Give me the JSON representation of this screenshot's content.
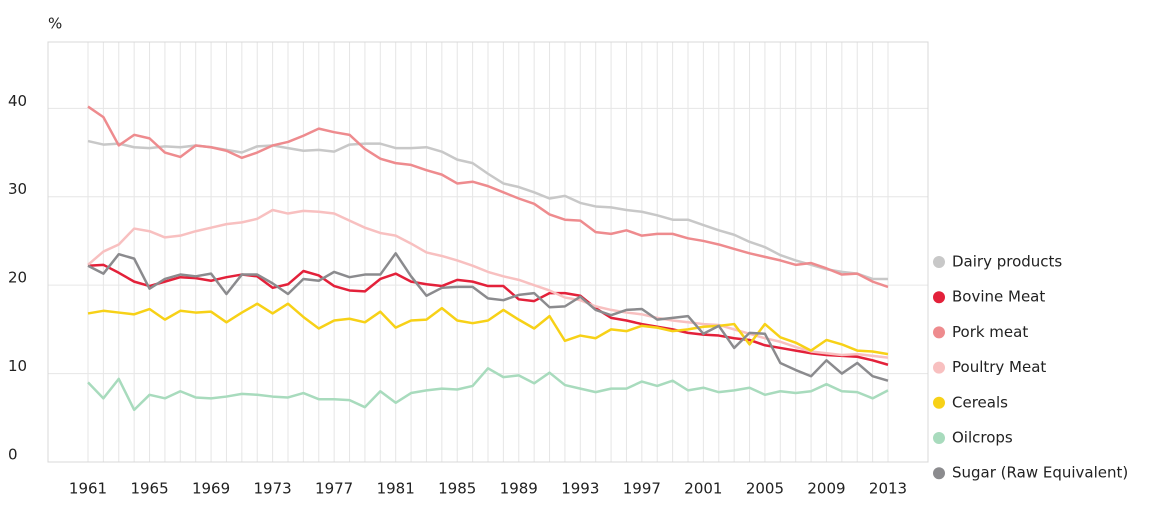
{
  "chart_data": {
    "type": "line",
    "y_label": "%",
    "x": [
      1961,
      1962,
      1963,
      1964,
      1965,
      1966,
      1967,
      1968,
      1969,
      1970,
      1971,
      1972,
      1973,
      1974,
      1975,
      1976,
      1977,
      1978,
      1979,
      1980,
      1981,
      1982,
      1983,
      1984,
      1985,
      1986,
      1987,
      1988,
      1989,
      1990,
      1991,
      1992,
      1993,
      1994,
      1995,
      1996,
      1997,
      1998,
      1999,
      2000,
      2001,
      2002,
      2003,
      2004,
      2005,
      2006,
      2007,
      2008,
      2009,
      2010,
      2011,
      2012,
      2013
    ],
    "xlim": [
      1958.4,
      2015.6
    ],
    "xticks": [
      1961,
      1965,
      1969,
      1973,
      1977,
      1981,
      1985,
      1989,
      1993,
      1997,
      2001,
      2005,
      2009,
      2013
    ],
    "ylim": [
      0,
      47.5
    ],
    "yticks": [
      0,
      10,
      20,
      30,
      40
    ],
    "grid": true,
    "legend": "right",
    "series": [
      {
        "name": "Dairy products",
        "color": "#c8c8c8",
        "values": [
          36.3,
          35.9,
          36.0,
          35.6,
          35.5,
          35.7,
          35.6,
          35.8,
          35.6,
          35.3,
          35.0,
          35.7,
          35.8,
          35.5,
          35.2,
          35.3,
          35.1,
          35.9,
          36.0,
          36.0,
          35.5,
          35.5,
          35.6,
          35.1,
          34.2,
          33.8,
          32.6,
          31.5,
          31.1,
          30.5,
          29.8,
          30.1,
          29.3,
          28.9,
          28.8,
          28.5,
          28.3,
          27.9,
          27.4,
          27.4,
          26.8,
          26.2,
          25.7,
          24.9,
          24.3,
          23.4,
          22.8,
          22.3,
          21.8,
          21.5,
          21.3,
          20.7,
          20.7
        ]
      },
      {
        "name": "Bovine Meat",
        "color": "#e3213a",
        "values": [
          22.2,
          22.3,
          21.4,
          20.4,
          19.9,
          20.4,
          20.9,
          20.8,
          20.5,
          20.9,
          21.2,
          21.0,
          19.7,
          20.1,
          21.6,
          21.1,
          19.9,
          19.4,
          19.3,
          20.7,
          21.3,
          20.4,
          20.1,
          19.9,
          20.6,
          20.4,
          19.9,
          19.9,
          18.4,
          18.2,
          19.1,
          19.1,
          18.8,
          17.4,
          16.3,
          16.0,
          15.6,
          15.3,
          15.0,
          14.6,
          14.4,
          14.3,
          14.0,
          13.8,
          13.2,
          12.9,
          12.6,
          12.3,
          12.1,
          12.0,
          11.9,
          11.5,
          11.0
        ]
      },
      {
        "name": "Pork meat",
        "color": "#ee8b8e",
        "values": [
          40.2,
          39.0,
          35.8,
          37.0,
          36.6,
          35.0,
          34.5,
          35.8,
          35.6,
          35.2,
          34.4,
          35.0,
          35.8,
          36.2,
          36.9,
          37.7,
          37.3,
          37.0,
          35.4,
          34.3,
          33.8,
          33.6,
          33.0,
          32.5,
          31.5,
          31.7,
          31.2,
          30.5,
          29.8,
          29.2,
          28.0,
          27.4,
          27.3,
          26.0,
          25.8,
          26.2,
          25.6,
          25.8,
          25.8,
          25.3,
          25.0,
          24.6,
          24.1,
          23.6,
          23.2,
          22.8,
          22.3,
          22.5,
          21.9,
          21.2,
          21.3,
          20.4,
          19.8
        ]
      },
      {
        "name": "Poultry Meat",
        "color": "#f8c0c0",
        "values": [
          22.3,
          23.8,
          24.6,
          26.4,
          26.1,
          25.4,
          25.6,
          26.1,
          26.5,
          26.9,
          27.1,
          27.5,
          28.5,
          28.1,
          28.4,
          28.3,
          28.1,
          27.3,
          26.5,
          25.9,
          25.6,
          24.7,
          23.7,
          23.3,
          22.8,
          22.2,
          21.5,
          21.0,
          20.6,
          20.0,
          19.4,
          18.6,
          18.3,
          17.6,
          17.2,
          16.9,
          16.7,
          16.3,
          16.0,
          15.8,
          15.6,
          15.5,
          15.0,
          14.5,
          14.0,
          13.6,
          13.0,
          12.5,
          12.3,
          12.1,
          12.2,
          12.0,
          11.8
        ]
      },
      {
        "name": "Cereals",
        "color": "#f7d117",
        "values": [
          16.8,
          17.1,
          16.9,
          16.7,
          17.3,
          16.1,
          17.1,
          16.9,
          17.0,
          15.8,
          16.9,
          17.9,
          16.8,
          17.9,
          16.4,
          15.1,
          16.0,
          16.2,
          15.8,
          17.0,
          15.2,
          16.0,
          16.1,
          17.4,
          16.0,
          15.7,
          16.0,
          17.2,
          16.1,
          15.1,
          16.5,
          13.7,
          14.3,
          14.0,
          15.0,
          14.8,
          15.4,
          15.2,
          14.8,
          15.0,
          15.3,
          15.4,
          15.6,
          13.3,
          15.6,
          14.1,
          13.5,
          12.6,
          13.8,
          13.3,
          12.6,
          12.5,
          12.2
        ]
      },
      {
        "name": "Oilcrops",
        "color": "#a8dbbd",
        "values": [
          9.0,
          7.2,
          9.4,
          5.9,
          7.6,
          7.2,
          8.0,
          7.3,
          7.2,
          7.4,
          7.7,
          7.6,
          7.4,
          7.3,
          7.8,
          7.1,
          7.1,
          7.0,
          6.2,
          8.0,
          6.7,
          7.8,
          8.1,
          8.3,
          8.2,
          8.6,
          10.6,
          9.6,
          9.8,
          8.9,
          10.1,
          8.7,
          8.3,
          7.9,
          8.3,
          8.3,
          9.1,
          8.6,
          9.2,
          8.1,
          8.4,
          7.9,
          8.1,
          8.4,
          7.6,
          8.0,
          7.8,
          8.0,
          8.8,
          8.0,
          7.9,
          7.2,
          8.1
        ]
      },
      {
        "name": "Sugar (Raw Equivalent)",
        "color": "#8b8b8e",
        "values": [
          22.2,
          21.3,
          23.5,
          23.0,
          19.6,
          20.7,
          21.2,
          21.0,
          21.3,
          19.0,
          21.2,
          21.2,
          20.2,
          19.0,
          20.7,
          20.5,
          21.5,
          20.9,
          21.2,
          21.2,
          23.6,
          21.0,
          18.8,
          19.7,
          19.8,
          19.8,
          18.5,
          18.3,
          18.9,
          19.1,
          17.5,
          17.6,
          18.7,
          17.2,
          16.6,
          17.2,
          17.3,
          16.1,
          16.3,
          16.5,
          14.5,
          15.4,
          12.9,
          14.6,
          14.5,
          11.2,
          10.4,
          9.7,
          11.5,
          10.0,
          11.2,
          9.7,
          9.2
        ]
      }
    ]
  }
}
